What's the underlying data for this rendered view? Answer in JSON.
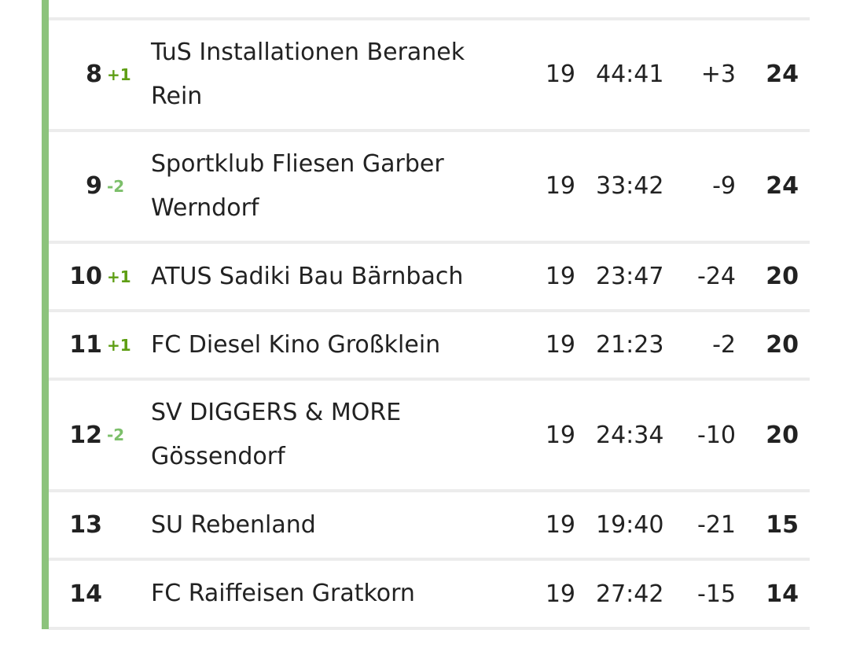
{
  "table": {
    "rows": [
      {
        "rank": "8",
        "change": "+1",
        "team": "TuS Installationen Beranek Rein",
        "games": "19",
        "goals": "44:41",
        "diff": "+3",
        "points": "24"
      },
      {
        "rank": "9",
        "change": "-2",
        "team": "Sportklub Fliesen Garber Werndorf",
        "games": "19",
        "goals": "33:42",
        "diff": "-9",
        "points": "24"
      },
      {
        "rank": "10",
        "change": "+1",
        "team": "ATUS Sadiki Bau Bärnbach",
        "games": "19",
        "goals": "23:47",
        "diff": "-24",
        "points": "20"
      },
      {
        "rank": "11",
        "change": "+1",
        "team": "FC Diesel Kino Großklein",
        "games": "19",
        "goals": "21:23",
        "diff": "-2",
        "points": "20"
      },
      {
        "rank": "12",
        "change": "-2",
        "team": "SV DIGGERS & MORE Gössendorf",
        "games": "19",
        "goals": "24:34",
        "diff": "-10",
        "points": "20"
      },
      {
        "rank": "13",
        "team": "SU Rebenland",
        "games": "19",
        "goals": "19:40",
        "diff": "-21",
        "points": "15"
      },
      {
        "rank": "14",
        "team": "FC Raiffeisen Gratkorn",
        "games": "19",
        "goals": "27:42",
        "diff": "-15",
        "points": "14"
      }
    ]
  }
}
